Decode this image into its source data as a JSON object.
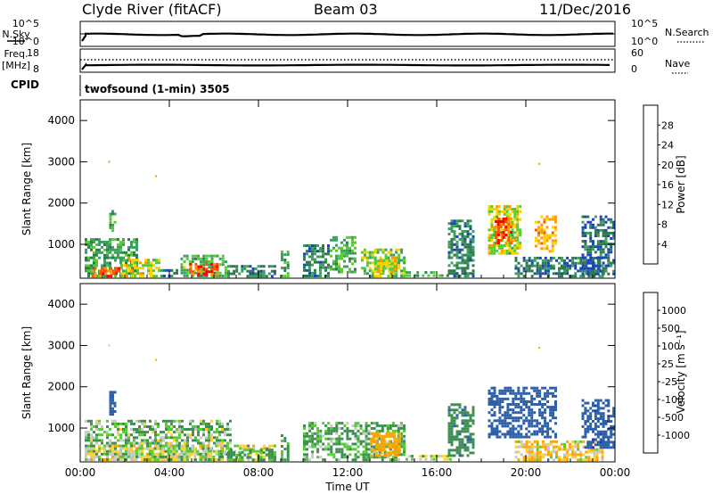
{
  "header": {
    "station": "Clyde River (fitACF)",
    "beam": "Beam 03",
    "date": "11/Dec/2016"
  },
  "nsky_panel": {
    "left_label": "N.Sky",
    "right_label": "N.Search",
    "left_ticks": [
      "10^5",
      "10^0"
    ],
    "right_ticks": [
      "10^5",
      "10^0"
    ]
  },
  "freq_panel": {
    "left_label_1": "Freq.",
    "left_label_2": "[MHz]",
    "right_label": "Nave",
    "left_ticks": [
      "18",
      "8"
    ],
    "right_ticks": [
      "60",
      "0"
    ]
  },
  "cpid": {
    "label": "CPID",
    "value": "twofsound (1-min) 3505"
  },
  "colors": {
    "power_scale": [
      "#1f1fff",
      "#1a46b8",
      "#2d7a4e",
      "#3f9f61",
      "#55cc33",
      "#ffd000",
      "#ff9900",
      "#ff5500",
      "#ff0000"
    ],
    "velocity_scale": [
      "#ff0000",
      "#ff6600",
      "#ffa500",
      "#ffd033",
      "#c8c8c8",
      "#55cc33",
      "#3f8f55",
      "#2d5fa8",
      "#1a3cbf"
    ],
    "ground_scatter": "#c8c8c8"
  },
  "chart_data": [
    {
      "type": "heatmap",
      "title": "",
      "xlabel": "",
      "ylabel": "Slant Range [km]",
      "x_ticks": [
        "00:00",
        "04:00",
        "08:00",
        "12:00",
        "16:00",
        "20:00",
        "00:00"
      ],
      "y_ticks": [
        "1000",
        "2000",
        "3000",
        "4000"
      ],
      "xlim": [
        0,
        24
      ],
      "ylim": [
        180,
        4500
      ],
      "colorbar": {
        "label": "Power [dB]",
        "ticks": [
          "28",
          "24",
          "20",
          "16",
          "12",
          "8",
          "4"
        ],
        "range": [
          0,
          32
        ]
      },
      "regions": [
        {
          "t0": 0.2,
          "t1": 2.6,
          "r0": 200,
          "r1": 1150,
          "level": 12
        },
        {
          "t0": 0.5,
          "t1": 1.8,
          "r0": 200,
          "r1": 450,
          "level": 27
        },
        {
          "t0": 1.8,
          "t1": 3.6,
          "r0": 200,
          "r1": 650,
          "level": 18
        },
        {
          "t0": 3.6,
          "t1": 4.4,
          "r0": 200,
          "r1": 400,
          "level": 8
        },
        {
          "t0": 1.3,
          "t1": 1.6,
          "r0": 1300,
          "r1": 1900,
          "level": 14
        },
        {
          "t0": 4.5,
          "t1": 6.6,
          "r0": 200,
          "r1": 750,
          "level": 14
        },
        {
          "t0": 4.9,
          "t1": 6.2,
          "r0": 250,
          "r1": 550,
          "level": 27
        },
        {
          "t0": 6.6,
          "t1": 8.8,
          "r0": 200,
          "r1": 500,
          "level": 10
        },
        {
          "t0": 9.0,
          "t1": 9.4,
          "r0": 200,
          "r1": 850,
          "level": 12
        },
        {
          "t0": 10.0,
          "t1": 11.2,
          "r0": 200,
          "r1": 1000,
          "level": 10
        },
        {
          "t0": 11.2,
          "t1": 12.4,
          "r0": 300,
          "r1": 1200,
          "level": 14
        },
        {
          "t0": 12.6,
          "t1": 14.6,
          "r0": 200,
          "r1": 900,
          "level": 16
        },
        {
          "t0": 13.2,
          "t1": 14.2,
          "r0": 300,
          "r1": 700,
          "level": 20
        },
        {
          "t0": 14.6,
          "t1": 16.8,
          "r0": 200,
          "r1": 350,
          "level": 12
        },
        {
          "t0": 16.5,
          "t1": 17.7,
          "r0": 200,
          "r1": 1600,
          "level": 10
        },
        {
          "t0": 18.3,
          "t1": 19.8,
          "r0": 750,
          "r1": 1950,
          "level": 18
        },
        {
          "t0": 18.6,
          "t1": 19.4,
          "r0": 1000,
          "r1": 1650,
          "level": 28
        },
        {
          "t0": 20.4,
          "t1": 21.4,
          "r0": 800,
          "r1": 1700,
          "level": 22
        },
        {
          "t0": 19.5,
          "t1": 23.5,
          "r0": 200,
          "r1": 700,
          "level": 9
        },
        {
          "t0": 22.5,
          "t1": 24.0,
          "r0": 250,
          "r1": 1700,
          "level": 8
        }
      ],
      "points": [
        {
          "t": 1.3,
          "r": 3000,
          "level": 24
        },
        {
          "t": 3.4,
          "r": 2650,
          "level": 24
        },
        {
          "t": 20.6,
          "r": 2950,
          "level": 24
        }
      ]
    },
    {
      "type": "heatmap",
      "title": "",
      "xlabel": "Time UT",
      "ylabel": "Slant Range [km]",
      "x_ticks": [
        "00:00",
        "04:00",
        "08:00",
        "12:00",
        "16:00",
        "20:00",
        "00:00"
      ],
      "y_ticks": [
        "1000",
        "2000",
        "3000",
        "4000"
      ],
      "xlim": [
        0,
        24
      ],
      "ylim": [
        180,
        4500
      ],
      "colorbar": {
        "label": "Velocity [m s⁻¹]",
        "ticks": [
          "1000",
          "500",
          "100",
          "25",
          "-25",
          "-100",
          "-500",
          "-1000"
        ],
        "range": [
          -1200,
          1200
        ]
      },
      "regions": [
        {
          "t0": 0.2,
          "t1": 6.8,
          "r0": 200,
          "r1": 1200,
          "level": 80
        },
        {
          "t0": 0.2,
          "t1": 8.8,
          "r0": 200,
          "r1": 600,
          "level": 0
        },
        {
          "t0": 1.3,
          "t1": 1.6,
          "r0": 1300,
          "r1": 1900,
          "level": 800
        },
        {
          "t0": 6.6,
          "t1": 8.8,
          "r0": 200,
          "r1": 500,
          "level": 150
        },
        {
          "t0": 9.0,
          "t1": 9.4,
          "r0": 200,
          "r1": 850,
          "level": 150
        },
        {
          "t0": 10.0,
          "t1": 14.6,
          "r0": 200,
          "r1": 1150,
          "level": 120
        },
        {
          "t0": 13.0,
          "t1": 14.4,
          "r0": 300,
          "r1": 900,
          "level": -300
        },
        {
          "t0": 14.6,
          "t1": 16.8,
          "r0": 200,
          "r1": 350,
          "level": 0
        },
        {
          "t0": 16.5,
          "t1": 17.7,
          "r0": 300,
          "r1": 1600,
          "level": 400
        },
        {
          "t0": 18.3,
          "t1": 21.4,
          "r0": 750,
          "r1": 2000,
          "level": 700
        },
        {
          "t0": 19.5,
          "t1": 23.5,
          "r0": 200,
          "r1": 700,
          "level": -80
        },
        {
          "t0": 22.5,
          "t1": 24.0,
          "r0": 500,
          "r1": 1700,
          "level": 900
        }
      ],
      "points": [
        {
          "t": 1.3,
          "r": 3000,
          "level": 0
        },
        {
          "t": 3.4,
          "r": 2650,
          "level": -400
        },
        {
          "t": 20.6,
          "r": 2950,
          "level": -400
        }
      ]
    }
  ]
}
